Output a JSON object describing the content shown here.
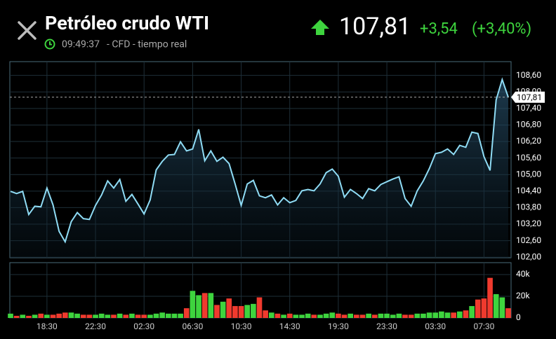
{
  "header": {
    "title": "Petróleo crudo WTI",
    "time": "09:49:37",
    "source": "- CFD - tiempo real",
    "price": "107,81",
    "change": "+3,54",
    "change_pct": "(+3,40%)"
  },
  "chart_data": [
    {
      "type": "line",
      "color": "#8fdcf5",
      "last_price": {
        "value": 107.81,
        "label": "107,81"
      },
      "categories": [
        null,
        null,
        null,
        null,
        null,
        null,
        "18:30",
        null,
        null,
        null,
        null,
        null,
        null,
        null,
        "22:30",
        null,
        null,
        null,
        null,
        null,
        null,
        null,
        "02:30",
        null,
        null,
        null,
        null,
        null,
        null,
        null,
        "06:30",
        null,
        null,
        null,
        null,
        null,
        null,
        null,
        "10:30",
        null,
        null,
        null,
        null,
        null,
        null,
        null,
        "14:30",
        null,
        null,
        null,
        null,
        null,
        null,
        null,
        "19:30",
        null,
        null,
        null,
        null,
        null,
        null,
        null,
        "23:30",
        null,
        null,
        null,
        null,
        null,
        null,
        null,
        "03:30",
        null,
        null,
        null,
        null,
        null,
        null,
        null,
        "07:30",
        null,
        null,
        null,
        null
      ],
      "values": [
        104.39,
        104.31,
        104.39,
        103.55,
        103.85,
        103.83,
        104.51,
        103.9,
        102.94,
        102.56,
        103.29,
        103.62,
        103.4,
        103.37,
        103.88,
        104.26,
        104.77,
        104.51,
        104.82,
        104.03,
        104.28,
        103.93,
        103.57,
        104.08,
        105.17,
        105.48,
        105.71,
        105.73,
        106.19,
        105.86,
        105.93,
        106.64,
        105.5,
        105.86,
        105.48,
        105.63,
        105.4,
        104.66,
        103.88,
        104.66,
        104.79,
        104.23,
        104.16,
        104.26,
        103.9,
        104.16,
        103.98,
        104.06,
        104.41,
        104.46,
        104.41,
        104.66,
        105.07,
        105.2,
        104.94,
        104.18,
        104.46,
        104.31,
        104.13,
        104.49,
        104.41,
        104.64,
        104.74,
        104.84,
        104.92,
        104.13,
        103.85,
        104.41,
        104.77,
        105.22,
        105.76,
        105.81,
        105.93,
        105.73,
        106.06,
        105.99,
        106.54,
        106.49,
        105.65,
        105.15,
        107.71,
        108.45,
        107.81
      ],
      "ylim": [
        101.98,
        109.1
      ],
      "yticks": [
        {
          "value": 102,
          "label": "102,00"
        },
        {
          "value": 102.6,
          "label": "102,60"
        },
        {
          "value": 103.2,
          "label": "103,20"
        },
        {
          "value": 103.8,
          "label": "103,80"
        },
        {
          "value": 104.4,
          "label": "104,40"
        },
        {
          "value": 105,
          "label": "105,00"
        },
        {
          "value": 105.6,
          "label": "105,60"
        },
        {
          "value": 106.2,
          "label": "106,20"
        },
        {
          "value": 106.8,
          "label": "106,80"
        },
        {
          "value": 107.4,
          "label": "107,40"
        },
        {
          "value": 108,
          "label": "108,00"
        },
        {
          "value": 108.6,
          "label": "108,60"
        }
      ],
      "grid": true
    },
    {
      "type": "bar",
      "up_color": "#3ed43e",
      "down_color": "#f03a2e",
      "values": [
        4000,
        2000,
        3000,
        2000,
        3000,
        4000,
        3000,
        3000,
        4000,
        5000,
        5000,
        4000,
        3000,
        3000,
        3000,
        4000,
        3000,
        3000,
        4000,
        3000,
        4000,
        3000,
        3000,
        3000,
        4000,
        5000,
        4000,
        4000,
        4000,
        9000,
        25000,
        21000,
        23000,
        23000,
        12000,
        15000,
        18000,
        11000,
        11000,
        12000,
        13000,
        19000,
        7000,
        5000,
        4000,
        3000,
        4000,
        3000,
        3000,
        4000,
        3000,
        3000,
        4000,
        5000,
        4000,
        3000,
        4000,
        3000,
        3000,
        4000,
        3000,
        4000,
        4000,
        3000,
        4000,
        3000,
        3000,
        4000,
        4000,
        5000,
        5000,
        6000,
        5000,
        5000,
        6000,
        7000,
        11000,
        17000,
        18000,
        37000,
        22000,
        19000,
        9000
      ],
      "ylim": [
        0,
        51000
      ],
      "yticks": [
        0,
        {
          "value": 20000,
          "label": "20k"
        },
        {
          "value": 40000,
          "label": "40k"
        }
      ],
      "grid": true
    }
  ]
}
